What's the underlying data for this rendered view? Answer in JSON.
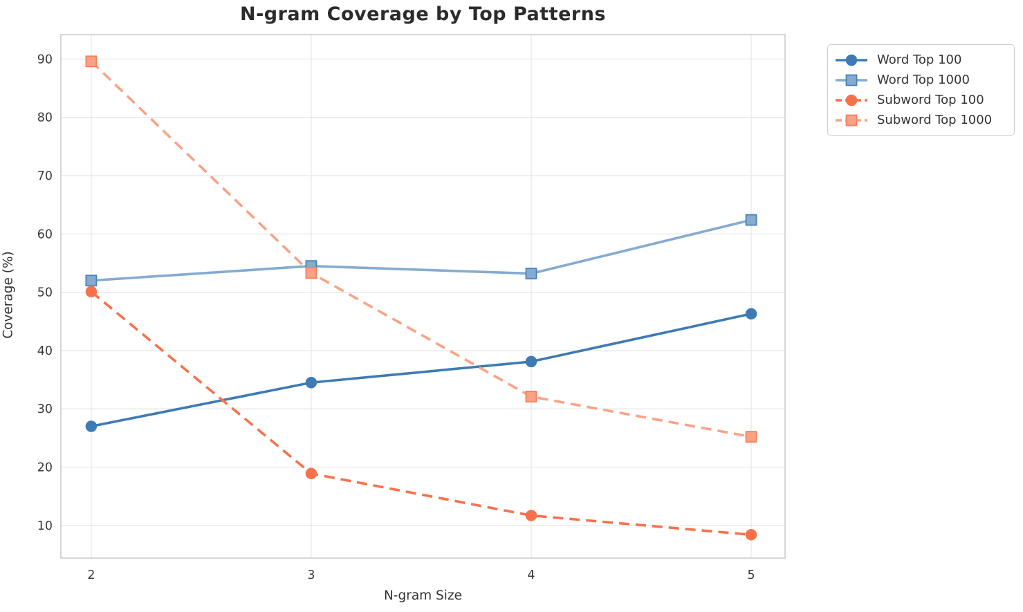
{
  "chart_data": {
    "type": "line",
    "title": "N-gram Coverage by Top Patterns",
    "xlabel": "N-gram Size",
    "ylabel": "Coverage (%)",
    "x": [
      2,
      3,
      4,
      5
    ],
    "xtick_labels": [
      "2",
      "3",
      "4",
      "5"
    ],
    "yticks": [
      10,
      20,
      30,
      40,
      50,
      60,
      70,
      80,
      90
    ],
    "xlim": [
      1.862,
      5.154
    ],
    "ylim": [
      4.4,
      94.2
    ],
    "grid": true,
    "legend_position": "outside-upper-right",
    "series": [
      {
        "name": "Word Top 100",
        "values": [
          27.0,
          34.5,
          38.1,
          46.3
        ],
        "color": "#3E7BB4",
        "marker": "circle",
        "marker_edge": "#3E7BB4",
        "line_style": "solid"
      },
      {
        "name": "Word Top 1000",
        "values": [
          52.0,
          54.5,
          53.2,
          62.4
        ],
        "color": "#85ABD1",
        "marker": "square",
        "marker_edge": "#4A81B6",
        "line_style": "solid"
      },
      {
        "name": "Subword Top 100",
        "values": [
          50.1,
          18.9,
          11.7,
          8.4
        ],
        "color": "#F8714B",
        "marker": "circle",
        "marker_edge": "#F8714B",
        "line_style": "dashed"
      },
      {
        "name": "Subword Top 1000",
        "values": [
          89.6,
          53.3,
          32.1,
          25.2
        ],
        "color": "#FAA286",
        "marker": "square",
        "marker_edge": "#F87F5B",
        "line_style": "dashed"
      }
    ]
  },
  "style": {
    "grid_color": "#E8E8E8",
    "spine_color": "#CBCBCB",
    "tick_text_color": "#3a3a3a",
    "title_color": "#2b2b2b",
    "plot_background": "#ffffff"
  }
}
